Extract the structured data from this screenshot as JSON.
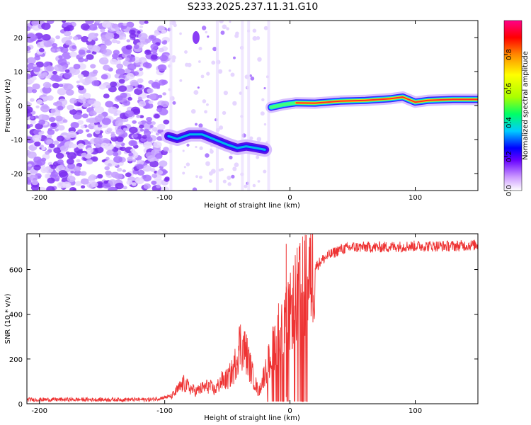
{
  "title": "S233.2025.237.11.31.G10",
  "chart_data": [
    {
      "type": "heatmap",
      "xlabel": "Height of straight line (km)",
      "ylabel": "Frequency (Hz)",
      "xlim": [
        -210,
        150
      ],
      "ylim": [
        -25,
        25
      ],
      "xticks": [
        -200,
        -100,
        0,
        100
      ],
      "yticks": [
        -20,
        -10,
        0,
        10,
        20
      ],
      "colorbar": {
        "label": "Normalized spectral amplitude",
        "range": [
          0,
          1
        ],
        "ticks": [
          "0.0",
          "0.2",
          "0.4",
          "0.6",
          "0.8"
        ],
        "tick_values": [
          0,
          0.2,
          0.4,
          0.6,
          0.8
        ],
        "colors": [
          "#ffffff",
          "#cc99ff",
          "#6600ff",
          "#0000ff",
          "#00ccff",
          "#00ff66",
          "#aaff00",
          "#ffff00",
          "#ff8800",
          "#ff0000",
          "#ff0088"
        ]
      },
      "ridge": [
        {
          "x": -97,
          "y": -9.0
        },
        {
          "x": -90,
          "y": -9.8
        },
        {
          "x": -80,
          "y": -8.5
        },
        {
          "x": -70,
          "y": -8.5
        },
        {
          "x": -60,
          "y": -10.0
        },
        {
          "x": -50,
          "y": -11.5
        },
        {
          "x": -42,
          "y": -12.5
        },
        {
          "x": -35,
          "y": -12.0
        },
        {
          "x": -27,
          "y": -12.5
        },
        {
          "x": -20,
          "y": -13.0
        },
        {
          "x": -15,
          "y": -0.5
        },
        {
          "x": -5,
          "y": 0.3
        },
        {
          "x": 5,
          "y": 0.8
        },
        {
          "x": 20,
          "y": 0.7
        },
        {
          "x": 40,
          "y": 1.3
        },
        {
          "x": 60,
          "y": 1.5
        },
        {
          "x": 80,
          "y": 2.0
        },
        {
          "x": 90,
          "y": 2.5
        },
        {
          "x": 100,
          "y": 1.0
        },
        {
          "x": 110,
          "y": 1.5
        },
        {
          "x": 130,
          "y": 1.8
        },
        {
          "x": 150,
          "y": 1.8
        }
      ]
    },
    {
      "type": "line",
      "xlabel": "Height of straight line (km)",
      "ylabel": "SNR (10 * v/v)",
      "xlim": [
        -210,
        150
      ],
      "ylim": [
        0,
        760
      ],
      "xticks": [
        -200,
        -100,
        0,
        100
      ],
      "yticks": [
        0,
        200,
        400,
        600
      ],
      "color": "#ee3333",
      "series": [
        {
          "name": "SNR",
          "x": [
            -210,
            -110,
            -95,
            -90,
            -85,
            -80,
            -75,
            -70,
            -65,
            -60,
            -55,
            -50,
            -45,
            -40,
            -35,
            -30,
            -25,
            -20,
            -15,
            -10,
            -5,
            0,
            5,
            10,
            15,
            20,
            25,
            30,
            40,
            50,
            70,
            100,
            130,
            150
          ],
          "y": [
            15,
            15,
            30,
            60,
            90,
            70,
            55,
            70,
            80,
            60,
            100,
            110,
            150,
            270,
            230,
            130,
            50,
            140,
            220,
            320,
            340,
            400,
            480,
            520,
            560,
            610,
            640,
            660,
            690,
            700,
            700,
            705,
            705,
            710
          ]
        }
      ]
    }
  ]
}
